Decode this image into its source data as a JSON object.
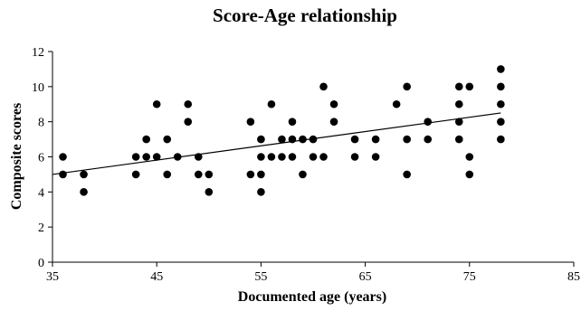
{
  "chart_data": {
    "type": "scatter",
    "title": "Score-Age relationship",
    "xlabel": "Documented age (years)",
    "ylabel": "Composite scores",
    "xlim": [
      35,
      85
    ],
    "ylim": [
      0,
      12
    ],
    "x_ticks": [
      35,
      45,
      55,
      65,
      75,
      85
    ],
    "y_ticks": [
      0,
      2,
      4,
      6,
      8,
      10,
      12
    ],
    "grid": false,
    "legend": "none",
    "marker_color": "#000000",
    "points": [
      {
        "x": 36,
        "y": 6
      },
      {
        "x": 36,
        "y": 5
      },
      {
        "x": 38,
        "y": 5
      },
      {
        "x": 38,
        "y": 4
      },
      {
        "x": 43,
        "y": 6
      },
      {
        "x": 43,
        "y": 5
      },
      {
        "x": 44,
        "y": 7
      },
      {
        "x": 44,
        "y": 6
      },
      {
        "x": 45,
        "y": 9
      },
      {
        "x": 45,
        "y": 6
      },
      {
        "x": 46,
        "y": 7
      },
      {
        "x": 46,
        "y": 5
      },
      {
        "x": 47,
        "y": 6
      },
      {
        "x": 48,
        "y": 9
      },
      {
        "x": 48,
        "y": 8
      },
      {
        "x": 49,
        "y": 6
      },
      {
        "x": 49,
        "y": 5
      },
      {
        "x": 50,
        "y": 5
      },
      {
        "x": 50,
        "y": 4
      },
      {
        "x": 54,
        "y": 8
      },
      {
        "x": 54,
        "y": 5
      },
      {
        "x": 55,
        "y": 7
      },
      {
        "x": 55,
        "y": 6
      },
      {
        "x": 55,
        "y": 5
      },
      {
        "x": 55,
        "y": 4
      },
      {
        "x": 56,
        "y": 9
      },
      {
        "x": 56,
        "y": 6
      },
      {
        "x": 57,
        "y": 7
      },
      {
        "x": 57,
        "y": 6
      },
      {
        "x": 58,
        "y": 8
      },
      {
        "x": 58,
        "y": 7
      },
      {
        "x": 58,
        "y": 6
      },
      {
        "x": 59,
        "y": 7
      },
      {
        "x": 59,
        "y": 5
      },
      {
        "x": 60,
        "y": 7
      },
      {
        "x": 60,
        "y": 6
      },
      {
        "x": 61,
        "y": 10
      },
      {
        "x": 61,
        "y": 6
      },
      {
        "x": 62,
        "y": 9
      },
      {
        "x": 62,
        "y": 8
      },
      {
        "x": 64,
        "y": 7
      },
      {
        "x": 64,
        "y": 6
      },
      {
        "x": 66,
        "y": 7
      },
      {
        "x": 66,
        "y": 6
      },
      {
        "x": 68,
        "y": 9
      },
      {
        "x": 69,
        "y": 10
      },
      {
        "x": 69,
        "y": 7
      },
      {
        "x": 69,
        "y": 5
      },
      {
        "x": 71,
        "y": 8
      },
      {
        "x": 71,
        "y": 7
      },
      {
        "x": 74,
        "y": 10
      },
      {
        "x": 74,
        "y": 9
      },
      {
        "x": 74,
        "y": 8
      },
      {
        "x": 74,
        "y": 7
      },
      {
        "x": 75,
        "y": 10
      },
      {
        "x": 75,
        "y": 6
      },
      {
        "x": 75,
        "y": 5
      },
      {
        "x": 78,
        "y": 11
      },
      {
        "x": 78,
        "y": 10
      },
      {
        "x": 78,
        "y": 9
      },
      {
        "x": 78,
        "y": 8
      },
      {
        "x": 78,
        "y": 7
      }
    ],
    "trendline": {
      "x": [
        35,
        78
      ],
      "y": [
        5.0,
        8.5
      ]
    }
  }
}
